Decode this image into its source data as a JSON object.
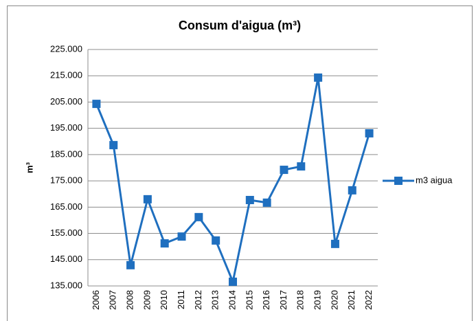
{
  "chart_data": {
    "type": "line",
    "title": "Consum d'aigua (m³)",
    "y_label": "m³",
    "categories": [
      "2006",
      "2007",
      "2008",
      "2009",
      "2010",
      "2011",
      "2012",
      "2013",
      "2014",
      "2015",
      "2016",
      "2017",
      "2018",
      "2019",
      "2020",
      "2021",
      "2022"
    ],
    "series": [
      {
        "name": "m3 aigua",
        "color": "#1f6fbf",
        "values": [
          204300,
          188600,
          142900,
          168000,
          151200,
          153800,
          161200,
          152300,
          136600,
          167700,
          166700,
          179200,
          180500,
          214300,
          151000,
          171400,
          193100
        ]
      }
    ],
    "ylim": [
      135000,
      225000
    ],
    "yticks": [
      {
        "value": 135000,
        "label": "135.000"
      },
      {
        "value": 145000,
        "label": "145.000"
      },
      {
        "value": 155000,
        "label": "155.000"
      },
      {
        "value": 165000,
        "label": "165.000"
      },
      {
        "value": 175000,
        "label": "175.000"
      },
      {
        "value": 185000,
        "label": "185.000"
      },
      {
        "value": 195000,
        "label": "195.000"
      },
      {
        "value": 205000,
        "label": "205.000"
      },
      {
        "value": 215000,
        "label": "215.000"
      },
      {
        "value": 225000,
        "label": "225.000"
      }
    ],
    "grid": true,
    "legend": "right"
  }
}
